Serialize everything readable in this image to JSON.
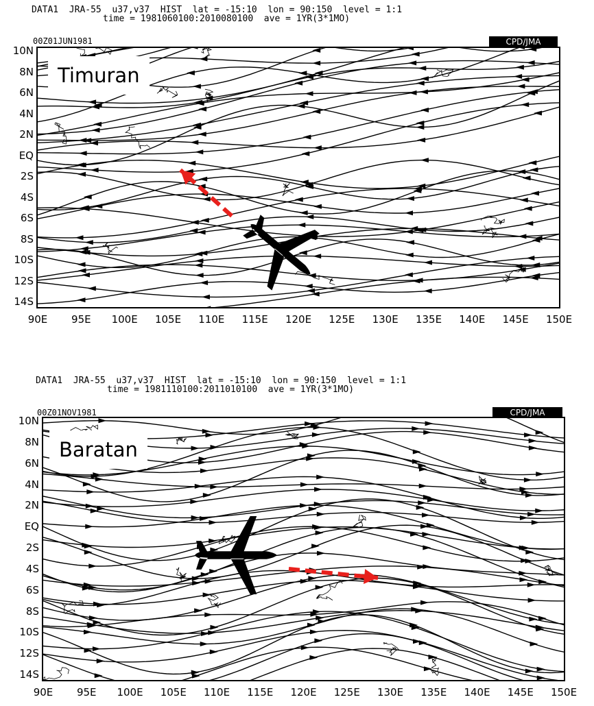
{
  "panels": [
    {
      "id": "top",
      "header_line1": "DATA1  JRA-55  u37,v37  HIST  lat = -15:10  lon = 90:150  level = 1:1",
      "header_line2": "time = 1981060100:2010080100  ave = 1YR(3*1MO)",
      "time_stamp": "00Z01JUN1981",
      "badge": "CPD/JMA",
      "season_label": "Timuran",
      "flow_direction": "east-to-west",
      "flight_direction": "northwest"
    },
    {
      "id": "bottom",
      "header_line1": "DATA1  JRA-55  u37,v37  HIST  lat = -15:10  lon = 90:150  level = 1:1",
      "header_line2": "time = 1981110100:2011010100  ave = 1YR(3*1MO)",
      "time_stamp": "00Z01NOV1981",
      "badge": "CPD/JMA",
      "season_label": "Baratan",
      "flow_direction": "west-to-east",
      "flight_direction": "east"
    }
  ],
  "y_labels": [
    "10N",
    "8N",
    "6N",
    "4N",
    "2N",
    "EQ",
    "2S",
    "4S",
    "6S",
    "8S",
    "10S",
    "12S",
    "14S"
  ],
  "x_labels": [
    "90E",
    "95E",
    "100E",
    "105E",
    "110E",
    "115E",
    "120E",
    "125E",
    "130E",
    "135E",
    "140E",
    "145E",
    "150E"
  ],
  "colors": {
    "arrow": "#e8201c",
    "lines": "#000000",
    "background": "#ffffff"
  },
  "icons": {
    "aircraft": "airplane-icon",
    "direction": "dashed-arrow-icon"
  }
}
